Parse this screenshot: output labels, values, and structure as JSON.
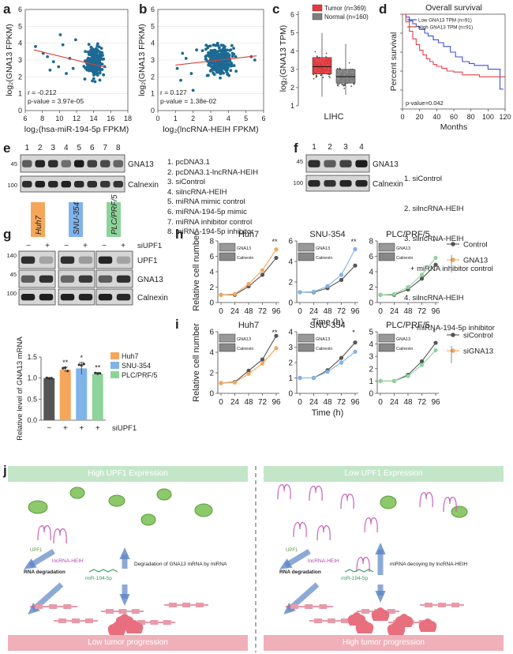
{
  "panel_labels": {
    "a": "a",
    "b": "b",
    "c": "c",
    "d": "d",
    "e": "e",
    "f": "f",
    "g": "g",
    "h": "h",
    "i": "i",
    "j": "j"
  },
  "chart_data": [
    {
      "id": "a",
      "type": "scatter",
      "xlabel": "log₂(hsa-miR-194-5p FPKM)",
      "ylabel": "log₂(GNA13 FPKM)",
      "xlim": [
        6,
        18
      ],
      "ylim": [
        0,
        6
      ],
      "xticks": [
        "6",
        "8",
        "10",
        "12",
        "14",
        "16",
        "18"
      ],
      "yticks": [
        "0",
        "1",
        "2",
        "3",
        "4",
        "5",
        "6"
      ],
      "annotations": [
        "r = -0.212",
        "p-value = 3.97e-05"
      ],
      "trend": {
        "x": [
          7,
          15.5
        ],
        "y": [
          3.6,
          2.55
        ]
      },
      "cloud": {
        "cx": 14.1,
        "cy": 2.9,
        "sx": 0.9,
        "sy": 0.85,
        "n": 330,
        "seed": 11
      },
      "outliers": {
        "x": [
          7.2,
          8.1,
          8.6,
          9.3,
          9.9,
          10.4,
          10.8,
          11.2,
          11.6,
          11.9,
          8.9,
          10.1
        ],
        "y": [
          3.8,
          3.4,
          3.2,
          2.9,
          2.6,
          3.9,
          2.2,
          3.1,
          2.5,
          4.2,
          2.4,
          4.5
        ]
      }
    },
    {
      "id": "b",
      "type": "scatter",
      "xlabel": "log₂(lncRNA-HEIH FPKM)",
      "ylabel": "log₂(GNA13 FPKM)",
      "xlim": [
        0,
        6
      ],
      "ylim": [
        0,
        6
      ],
      "xticks": [
        "0",
        "1",
        "2",
        "3",
        "4",
        "5",
        "6"
      ],
      "yticks": [
        "0",
        "1",
        "2",
        "3",
        "4",
        "5",
        "6"
      ],
      "annotations": [
        "r = 0.127",
        "p-value = 1.38e-02"
      ],
      "trend": {
        "x": [
          1.0,
          5.6
        ],
        "y": [
          2.7,
          3.25
        ]
      },
      "cloud": {
        "cx": 3.5,
        "cy": 2.95,
        "sx": 0.75,
        "sy": 0.85,
        "n": 330,
        "seed": 23
      },
      "outliers": {
        "x": [
          1.1,
          1.3,
          1.6,
          1.9,
          2.2,
          5.3,
          5.5,
          2.0,
          1.4
        ],
        "y": [
          2.5,
          1.8,
          3.1,
          2.2,
          3.6,
          3.2,
          3.0,
          1.2,
          3.4
        ]
      }
    },
    {
      "id": "c",
      "type": "box",
      "ylabel": "log₂(GNA13 TPM)",
      "xlabel": "LIHC",
      "ylim": [
        1,
        6.2
      ],
      "yticks": [
        "1",
        "2",
        "3",
        "4",
        "5",
        "6"
      ],
      "legend": [
        {
          "label": "Tumor (n=369)",
          "color": "#e8383d"
        },
        {
          "label": "Normal (n=160)",
          "color": "#7f7f7f"
        }
      ],
      "series": [
        {
          "name": "Tumor",
          "q1": 2.75,
          "median": 3.15,
          "q3": 3.65,
          "low": 1.5,
          "high": 5.0,
          "n": 200
        },
        {
          "name": "Normal",
          "q1": 2.25,
          "median": 2.6,
          "q3": 3.0,
          "low": 1.6,
          "high": 4.4,
          "n": 140
        }
      ]
    },
    {
      "id": "d",
      "type": "line",
      "title": "Overall survival",
      "xlabel": "Months",
      "ylabel": "Percent survival",
      "xlim": [
        0,
        120
      ],
      "ylim": [
        0,
        1
      ],
      "xticks": [
        "0",
        "20",
        "40",
        "60",
        "80",
        "100",
        "120"
      ],
      "yticks": [
        "0.0",
        "0.2",
        "0.4",
        "0.6",
        "0.8",
        "1.0"
      ],
      "legend_title": "",
      "annotation": "p-value=0.042",
      "series": [
        {
          "name": "Low GNA13 TPM (n=91)",
          "color": "#3a4fd6",
          "x": [
            0,
            4,
            8,
            12,
            16,
            20,
            26,
            30,
            36,
            42,
            48,
            56,
            62,
            70,
            78,
            84,
            92,
            100,
            108,
            114,
            118
          ],
          "y": [
            1.0,
            0.97,
            0.93,
            0.9,
            0.87,
            0.84,
            0.8,
            0.77,
            0.73,
            0.7,
            0.66,
            0.6,
            0.55,
            0.5,
            0.48,
            0.46,
            0.46,
            0.42,
            0.42,
            0.21,
            0.21
          ]
        },
        {
          "name": "High GNA13 TPM (n=91)",
          "color": "#e4404a",
          "x": [
            0,
            4,
            8,
            12,
            16,
            20,
            24,
            28,
            32,
            36,
            40,
            46,
            52,
            60,
            70,
            80,
            90,
            100,
            110,
            120
          ],
          "y": [
            1.0,
            0.92,
            0.82,
            0.74,
            0.68,
            0.62,
            0.57,
            0.53,
            0.5,
            0.47,
            0.45,
            0.43,
            0.4,
            0.39,
            0.36,
            0.36,
            0.34,
            0.34,
            0.34,
            0.34
          ]
        }
      ]
    },
    {
      "id": "g2",
      "type": "bar",
      "ylabel": "Relative level of GNA13 mRNA",
      "xlabel": "siUPF1",
      "ylim": [
        0,
        1.5
      ],
      "yticks": [
        "0.0",
        "0.5",
        "1.0",
        "1.5"
      ],
      "categories": [
        "−",
        "+",
        "+",
        "+"
      ],
      "values": [
        1.0,
        1.2,
        1.23,
        1.1
      ],
      "colors": [
        "#555555",
        "#f5a65b",
        "#7fb3ea",
        "#8ed49a"
      ],
      "errors": [
        0.01,
        0.06,
        0.14,
        0.03
      ],
      "sig": [
        "",
        "**",
        "*",
        "**"
      ],
      "legend": [
        {
          "label": "Huh7",
          "color": "#f5a65b"
        },
        {
          "label": "SNU-354",
          "color": "#7fb3ea"
        },
        {
          "label": "PLC/PRF/5",
          "color": "#8ed49a"
        }
      ]
    },
    {
      "id": "h",
      "type": "line",
      "xlabel": "Time (h)",
      "ylabel": "Relative cell number",
      "xticks": [
        "0",
        "24",
        "48",
        "72",
        "96"
      ],
      "legend": [
        {
          "label": "Control",
          "color": "#555555"
        },
        {
          "label": "GNA13",
          "color": "#f5a65b"
        }
      ],
      "subplots": [
        {
          "title": "Huh7",
          "ylim": [
            0,
            8
          ],
          "yticks": [
            "0",
            "2",
            "4",
            "6",
            "8"
          ],
          "sig": "**",
          "series": [
            {
              "name": "Control",
              "color": "#555555",
              "y": [
                1,
                1,
                2.1,
                3.6,
                5.8
              ]
            },
            {
              "name": "GNA13",
              "color": "#f5a65b",
              "y": [
                1,
                1.1,
                2.4,
                4.2,
                6.9
              ]
            }
          ]
        },
        {
          "title": "SNU-354",
          "ylim": [
            0,
            6
          ],
          "yticks": [
            "0",
            "2",
            "4",
            "6"
          ],
          "sig": "**",
          "series": [
            {
              "name": "Control",
              "color": "#555555",
              "y": [
                1,
                1,
                1.4,
                2.2,
                3.6
              ]
            },
            {
              "name": "GNA13",
              "color": "#7fb3ea",
              "y": [
                1,
                1.05,
                1.6,
                2.7,
                5.2
              ]
            }
          ]
        },
        {
          "title": "PLC/PRF/5",
          "ylim": [
            0,
            8
          ],
          "yticks": [
            "0",
            "2",
            "4",
            "6",
            "8"
          ],
          "sig": "*",
          "series": [
            {
              "name": "Control",
              "color": "#555555",
              "y": [
                1,
                1,
                1.7,
                3.1,
                4.9
              ]
            },
            {
              "name": "GNA13",
              "color": "#8ed49a",
              "y": [
                1,
                1.1,
                2.0,
                3.6,
                5.8
              ]
            }
          ]
        }
      ]
    },
    {
      "id": "i",
      "type": "line",
      "xlabel": "Time (h)",
      "ylabel": "Relative cell number",
      "xticks": [
        "0",
        "24",
        "48",
        "72",
        "96"
      ],
      "legend": [
        {
          "label": "siControl",
          "color": "#555555"
        },
        {
          "label": "siGNA13",
          "color": "#f5a65b"
        }
      ],
      "subplots": [
        {
          "title": "Huh7",
          "ylim": [
            0,
            6
          ],
          "yticks": [
            "0",
            "2",
            "4",
            "6"
          ],
          "sig": "**",
          "series": [
            {
              "name": "siControl",
              "color": "#555555",
              "y": [
                1,
                1.1,
                2.2,
                3.3,
                5.6
              ]
            },
            {
              "name": "siGNA13",
              "color": "#f5a65b",
              "y": [
                1,
                1.05,
                1.9,
                2.9,
                4.4
              ]
            }
          ]
        },
        {
          "title": "SNU-354",
          "ylim": [
            0,
            4
          ],
          "yticks": [
            "0",
            "1",
            "2",
            "3",
            "4"
          ],
          "sig": "*",
          "series": [
            {
              "name": "siControl",
              "color": "#555555",
              "y": [
                1,
                1,
                1.5,
                2.3,
                3.3
              ]
            },
            {
              "name": "siGNA13",
              "color": "#7fb3ea",
              "y": [
                1,
                1,
                1.4,
                2.0,
                2.7
              ]
            }
          ]
        },
        {
          "title": "PLC/PRF/5",
          "ylim": [
            0,
            5
          ],
          "yticks": [
            "0",
            "1",
            "2",
            "3",
            "4",
            "5"
          ],
          "sig": "*",
          "series": [
            {
              "name": "siControl",
              "color": "#555555",
              "y": [
                1,
                1,
                1.5,
                2.6,
                4.1
              ]
            },
            {
              "name": "siGNA13",
              "color": "#8ed49a",
              "y": [
                1,
                1,
                1.4,
                2.3,
                3.5
              ]
            }
          ]
        }
      ]
    }
  ],
  "blot_e": {
    "lanes": [
      "1",
      "2",
      "3",
      "4",
      "5",
      "6",
      "7",
      "8"
    ],
    "markers": [
      "45",
      "100"
    ],
    "bands": [
      "GNA13",
      "Calnexin"
    ],
    "intensity": [
      0.6,
      0.9,
      0.85,
      0.5,
      0.95,
      0.75,
      0.7,
      0.55
    ],
    "legend": [
      "1. pcDNA3.1",
      "2. pcDNA3.1-lncRNA-HEIH",
      "3. siControl",
      "4. silncRNA-HEIH",
      "5. miRNA mimic control",
      "6. miRNA-194-5p mimic",
      "7. miRNA inhibitor control",
      "8. miRNA-194-5p inhibitor"
    ]
  },
  "blot_f": {
    "lanes": [
      "1",
      "2",
      "3",
      "4"
    ],
    "markers": [
      "45",
      "100"
    ],
    "bands": [
      "GNA13",
      "Calnexin"
    ],
    "intensity": [
      0.85,
      0.6,
      0.75,
      0.95
    ],
    "legend": [
      "1. siControl",
      "2. silncRNA-HEIH",
      "3. silncRNA-HEIH",
      "   + miRNA inhibitor control",
      "4. silncRNA-HEIH",
      "   + miRNA-194-5p inhibitor"
    ]
  },
  "blot_g": {
    "cell_lines": [
      {
        "label": "Huh7",
        "color": "#f5a65b"
      },
      {
        "label": "SNU-354",
        "color": "#7fb3ea"
      },
      {
        "label": "PLC/PRF/5",
        "color": "#8ed49a"
      }
    ],
    "treatment_label": "siUPF1",
    "lane_signs": [
      "−",
      "+",
      "−",
      "+",
      "−",
      "+"
    ],
    "markers": [
      "140",
      "45",
      "100"
    ],
    "bands": [
      "UPF1",
      "GNA13",
      "Calnexin"
    ]
  },
  "inset_labels": {
    "gna13": "GNA13",
    "calnexin": "Calnexin"
  },
  "panel_j": {
    "left_header": "High UPF1 Expression",
    "right_header": "Low UPF1 Expression",
    "left_footer": "Low tumor progression",
    "right_footer": "High tumor progression",
    "upf1": "UPF1",
    "lncrna": "lncRNA-HEIH",
    "mirna": "miR-194-5p",
    "rna_deg": "RNA degradation",
    "left_note": "Degradation of GNA13 mRNA by miRNA",
    "right_note": "miRNA decoying by lncRNA-HEIH"
  }
}
